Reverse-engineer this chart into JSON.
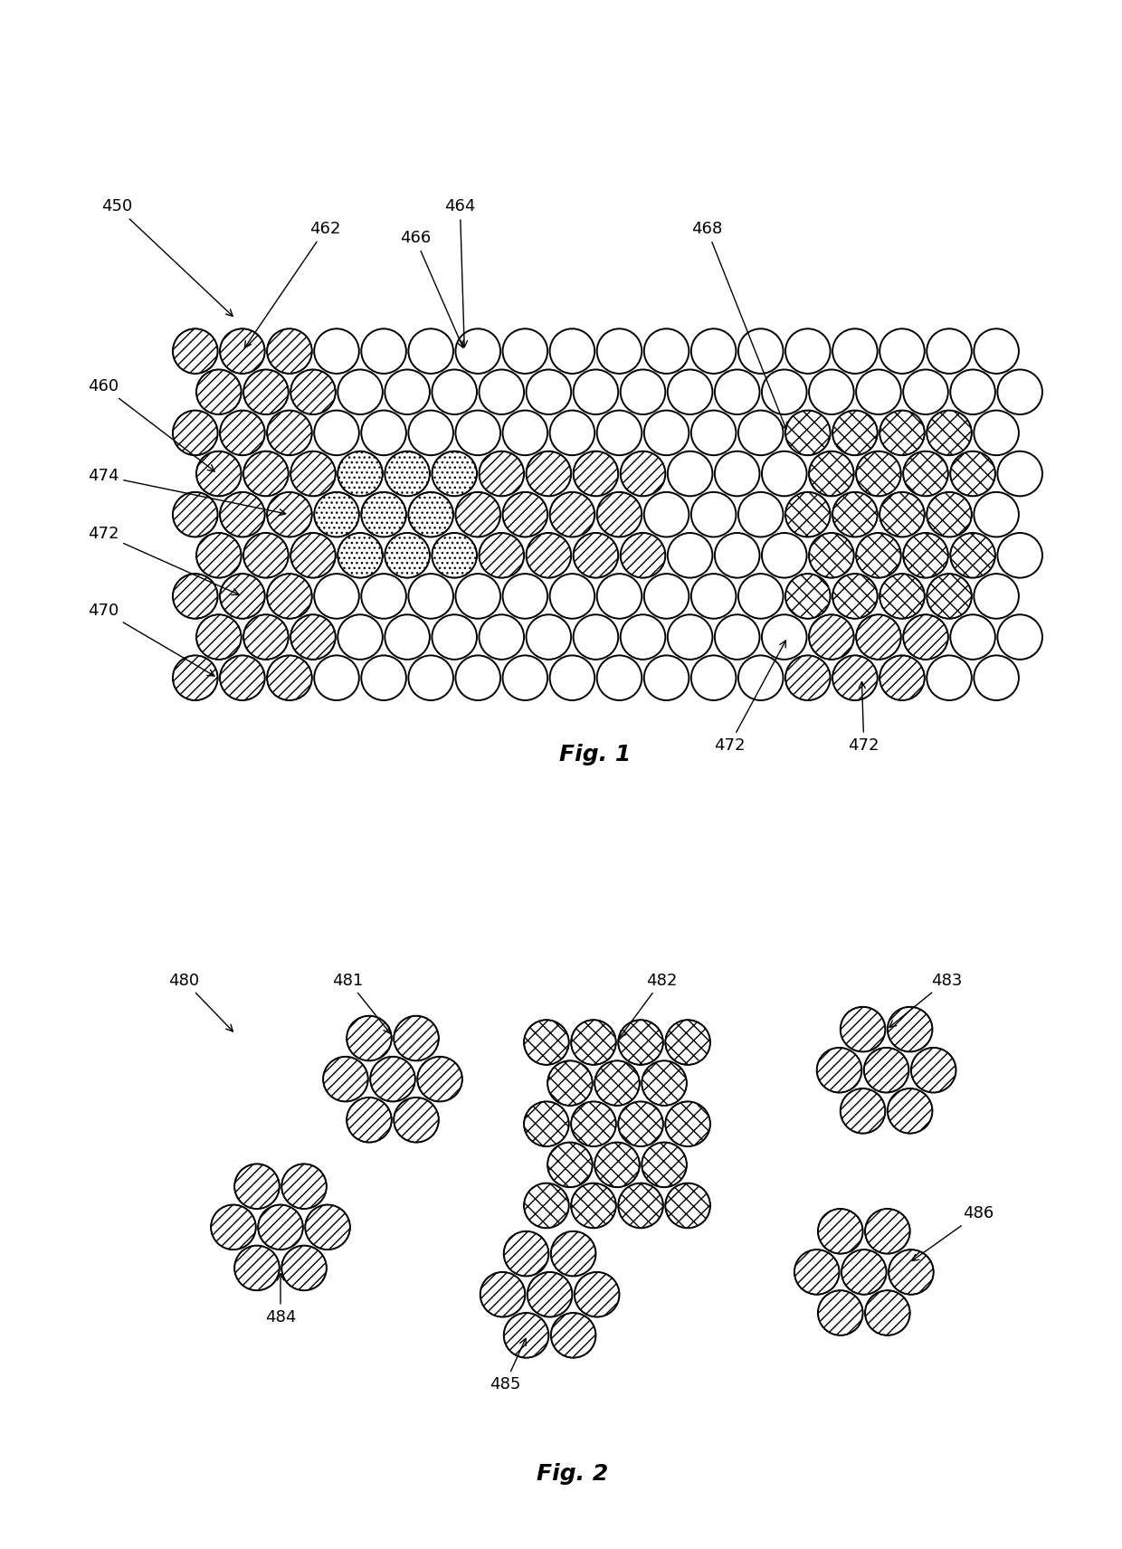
{
  "bg_color": "#ffffff",
  "ec": "#000000",
  "lw": 1.4,
  "fig1_label": "Fig. 1",
  "fig2_label": "Fig. 2",
  "fig1_label_fontsize": 18,
  "fig2_label_fontsize": 18,
  "annot_fontsize": 13,
  "arrow_lw": 1.0
}
